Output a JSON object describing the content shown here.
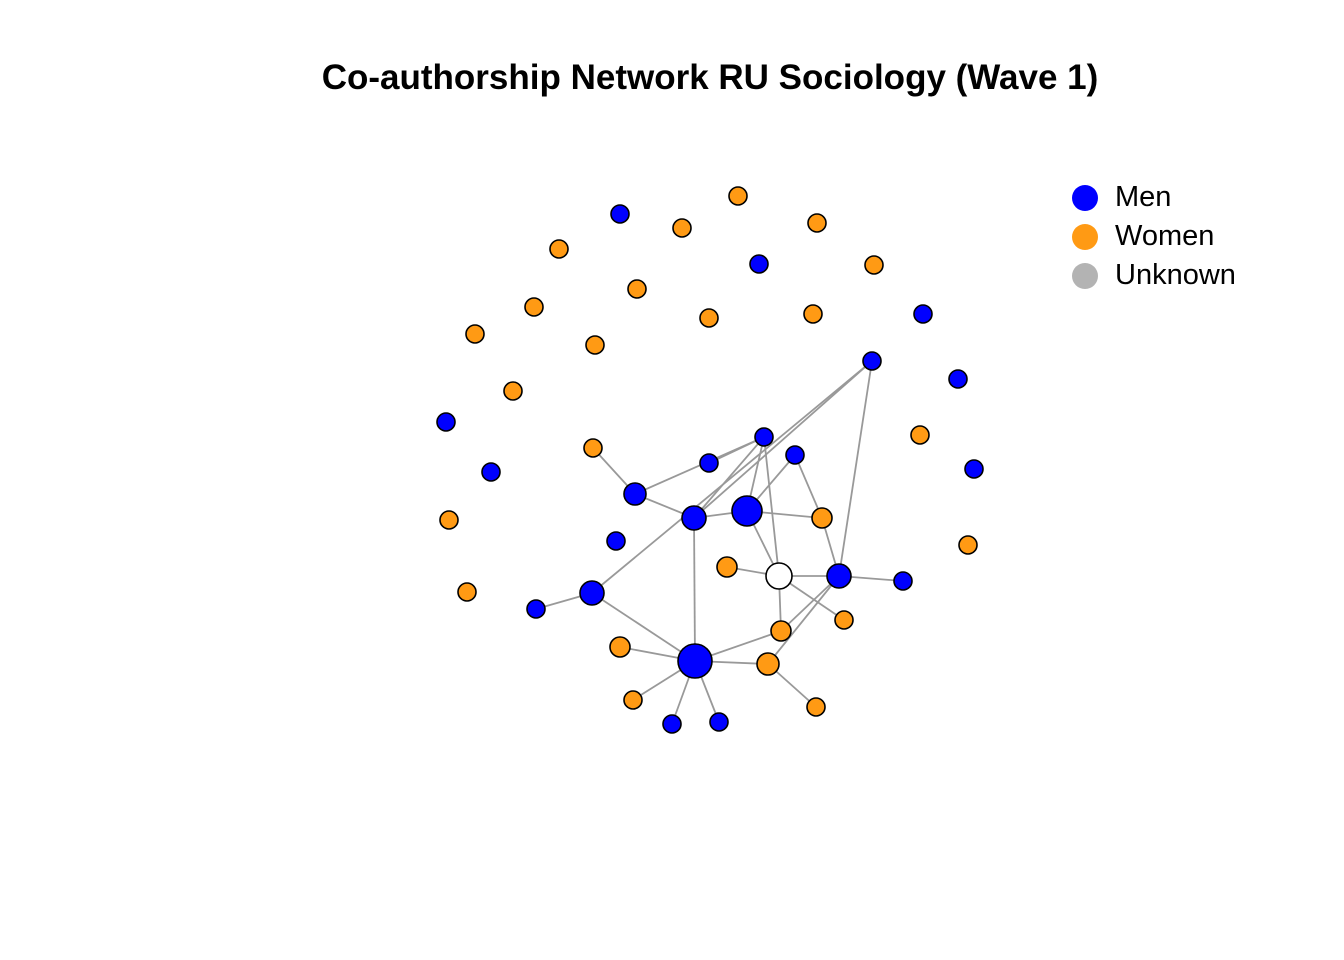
{
  "title": "Co-authorship Network RU Sociology (Wave 1)",
  "colors": {
    "men": "#0000ff",
    "women": "#ff9a14",
    "unknown": "#ffffff",
    "legend_unknown": "#b3b3b3",
    "edge": "#999999",
    "node_border": "#000000"
  },
  "legend": [
    {
      "label": "Men",
      "group": "men"
    },
    {
      "label": "Women",
      "group": "women"
    },
    {
      "label": "Unknown",
      "group": "legend_unknown"
    }
  ],
  "network": {
    "nodes": [
      {
        "id": "n1",
        "group": "men"
      },
      {
        "id": "n2",
        "group": "women"
      },
      {
        "id": "n3",
        "group": "women"
      },
      {
        "id": "n4",
        "group": "women"
      },
      {
        "id": "n5",
        "group": "women"
      },
      {
        "id": "n6",
        "group": "men"
      },
      {
        "id": "n7",
        "group": "women"
      },
      {
        "id": "n8",
        "group": "women"
      },
      {
        "id": "n9",
        "group": "women"
      },
      {
        "id": "n10",
        "group": "men"
      },
      {
        "id": "n11",
        "group": "women"
      },
      {
        "id": "n12",
        "group": "women"
      },
      {
        "id": "n13",
        "group": "women"
      },
      {
        "id": "n14",
        "group": "men"
      },
      {
        "id": "n15",
        "group": "women"
      },
      {
        "id": "n16",
        "group": "men"
      },
      {
        "id": "n17",
        "group": "women"
      },
      {
        "id": "n18",
        "group": "men"
      },
      {
        "id": "n19",
        "group": "women"
      },
      {
        "id": "n20",
        "group": "women"
      },
      {
        "id": "n21",
        "group": "women"
      },
      {
        "id": "n22",
        "group": "men"
      },
      {
        "id": "n23",
        "group": "men"
      },
      {
        "id": "n24",
        "group": "men"
      },
      {
        "id": "n25",
        "group": "men"
      },
      {
        "id": "n26",
        "group": "men"
      },
      {
        "id": "n27",
        "group": "women"
      },
      {
        "id": "n28",
        "group": "men"
      },
      {
        "id": "n29",
        "group": "men"
      },
      {
        "id": "n30",
        "group": "men"
      },
      {
        "id": "n31",
        "group": "women"
      },
      {
        "id": "n32",
        "group": "unknown"
      },
      {
        "id": "n33",
        "group": "men"
      },
      {
        "id": "n34",
        "group": "men"
      },
      {
        "id": "n35",
        "group": "men"
      },
      {
        "id": "n36",
        "group": "men"
      },
      {
        "id": "n37",
        "group": "women"
      },
      {
        "id": "n38",
        "group": "women"
      },
      {
        "id": "n39",
        "group": "women"
      },
      {
        "id": "n40",
        "group": "men"
      },
      {
        "id": "n41",
        "group": "women"
      },
      {
        "id": "n42",
        "group": "women"
      },
      {
        "id": "n43",
        "group": "women"
      },
      {
        "id": "n44",
        "group": "men"
      },
      {
        "id": "n45",
        "group": "men"
      },
      {
        "id": "n46",
        "group": "women"
      },
      {
        "id": "n47",
        "group": "men"
      },
      {
        "id": "n48",
        "group": "women"
      },
      {
        "id": "n49",
        "group": "women"
      },
      {
        "id": "n50",
        "group": "women"
      },
      {
        "id": "n51",
        "group": "women"
      },
      {
        "id": "n52",
        "group": "women"
      },
      {
        "id": "n53",
        "group": "women"
      }
    ],
    "edges": [
      [
        "n17",
        "n23"
      ],
      [
        "n23",
        "n30"
      ],
      [
        "n23",
        "n29"
      ],
      [
        "n24",
        "n30"
      ],
      [
        "n25",
        "n31"
      ],
      [
        "n25",
        "n26"
      ],
      [
        "n25",
        "n30"
      ],
      [
        "n25",
        "n29"
      ],
      [
        "n25",
        "n32"
      ],
      [
        "n26",
        "n31"
      ],
      [
        "n28",
        "n34"
      ],
      [
        "n28",
        "n33"
      ],
      [
        "n28",
        "n29"
      ],
      [
        "n29",
        "n30"
      ],
      [
        "n29",
        "n40"
      ],
      [
        "n30",
        "n32"
      ],
      [
        "n31",
        "n33"
      ],
      [
        "n32",
        "n33"
      ],
      [
        "n32",
        "n38"
      ],
      [
        "n32",
        "n37"
      ],
      [
        "n33",
        "n36"
      ],
      [
        "n33",
        "n37"
      ],
      [
        "n33",
        "n41"
      ],
      [
        "n34",
        "n35"
      ],
      [
        "n34",
        "n40"
      ],
      [
        "n37",
        "n40"
      ],
      [
        "n40",
        "n41"
      ],
      [
        "n40",
        "n46"
      ],
      [
        "n40",
        "n43"
      ],
      [
        "n40",
        "n44"
      ],
      [
        "n40",
        "n45"
      ],
      [
        "n41",
        "n42"
      ],
      [
        "n32",
        "n39"
      ]
    ]
  }
}
